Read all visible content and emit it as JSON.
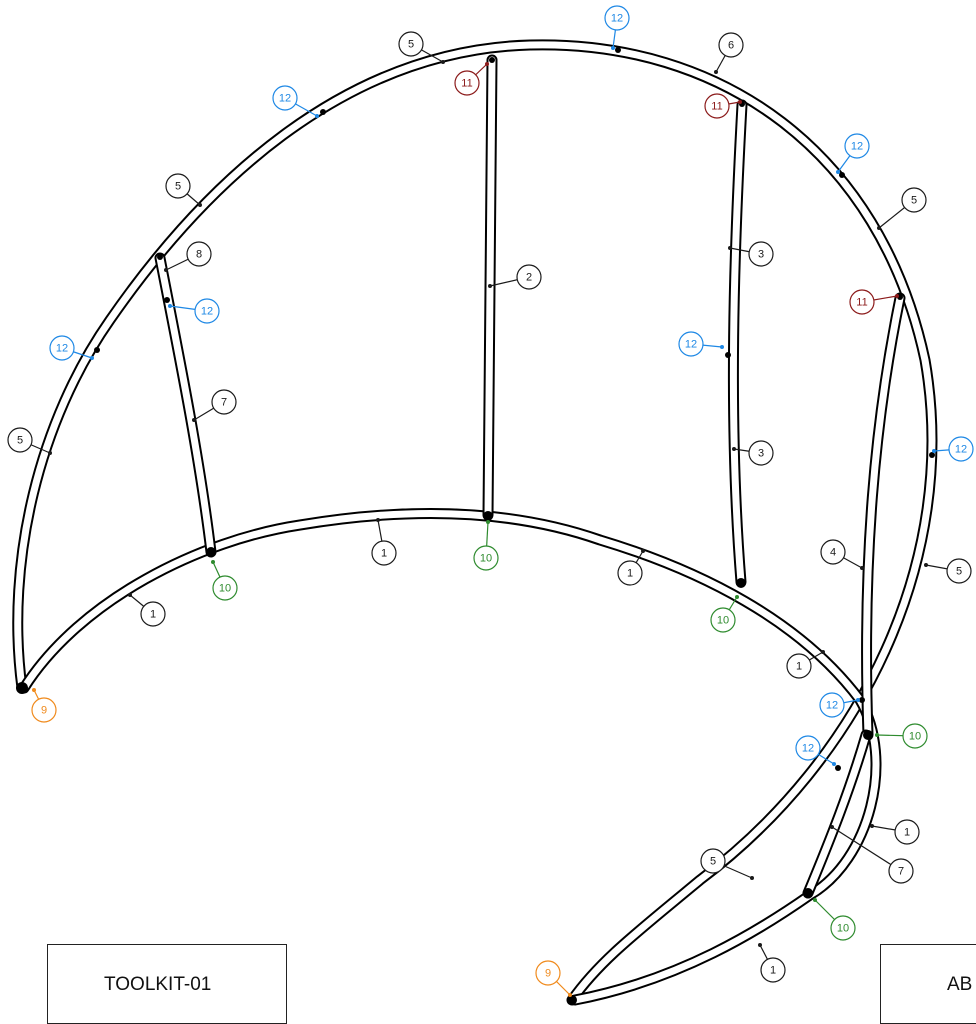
{
  "title_block_left": {
    "text": "TOOLKIT-01"
  },
  "title_block_right": {
    "text": "AB"
  },
  "colors": {
    "default": "#1a1a1a",
    "tee_connector": "#2e8b2e",
    "top_cap": "#8b1a1a",
    "clip": "#1e88e5",
    "end_cap": "#f08a1c"
  },
  "callouts": [
    {
      "number": "5",
      "color": "default"
    },
    {
      "number": "12",
      "color": "clip"
    },
    {
      "number": "6",
      "color": "default"
    },
    {
      "number": "11",
      "color": "top_cap"
    },
    {
      "number": "11",
      "color": "top_cap"
    },
    {
      "number": "12",
      "color": "clip"
    },
    {
      "number": "12",
      "color": "clip"
    },
    {
      "number": "5",
      "color": "default"
    },
    {
      "number": "5",
      "color": "default"
    },
    {
      "number": "8",
      "color": "default"
    },
    {
      "number": "2",
      "color": "default"
    },
    {
      "number": "3",
      "color": "default"
    },
    {
      "number": "11",
      "color": "top_cap"
    },
    {
      "number": "12",
      "color": "clip"
    },
    {
      "number": "12",
      "color": "clip"
    },
    {
      "number": "12",
      "color": "clip"
    },
    {
      "number": "7",
      "color": "default"
    },
    {
      "number": "3",
      "color": "default"
    },
    {
      "number": "12",
      "color": "clip"
    },
    {
      "number": "5",
      "color": "default"
    },
    {
      "number": "1",
      "color": "default"
    },
    {
      "number": "10",
      "color": "tee_connector"
    },
    {
      "number": "4",
      "color": "default"
    },
    {
      "number": "5",
      "color": "default"
    },
    {
      "number": "10",
      "color": "tee_connector"
    },
    {
      "number": "1",
      "color": "default"
    },
    {
      "number": "1",
      "color": "default"
    },
    {
      "number": "10",
      "color": "tee_connector"
    },
    {
      "number": "9",
      "color": "end_cap"
    },
    {
      "number": "1",
      "color": "default"
    },
    {
      "number": "12",
      "color": "clip"
    },
    {
      "number": "10",
      "color": "tee_connector"
    },
    {
      "number": "12",
      "color": "clip"
    },
    {
      "number": "1",
      "color": "default"
    },
    {
      "number": "5",
      "color": "default"
    },
    {
      "number": "7",
      "color": "default"
    },
    {
      "number": "10",
      "color": "tee_connector"
    },
    {
      "number": "1",
      "color": "default"
    },
    {
      "number": "9",
      "color": "end_cap"
    }
  ]
}
